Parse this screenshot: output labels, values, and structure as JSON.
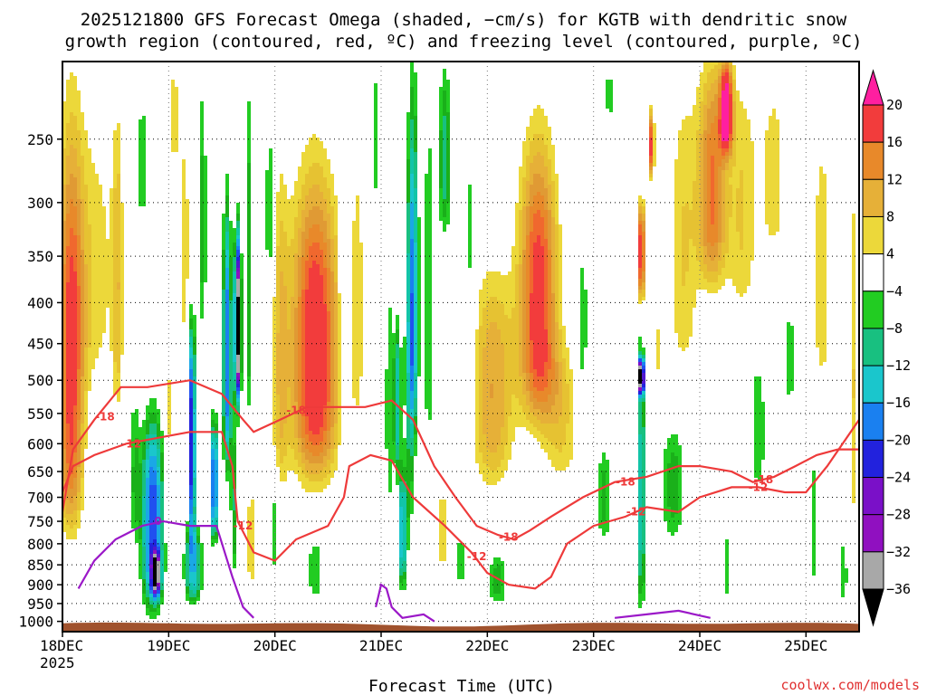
{
  "chart_data": {
    "type": "heatmap",
    "title_line1": "2025121800 GFS Forecast Omega (shaded, −cm/s) for KGTB with dendritic snow",
    "title_line2": "growth region (contoured, red, ºC) and freezing level (contoured, purple, ºC)",
    "xlabel": "Forecast Time (UTC)",
    "ylabel": "",
    "credit": "coolwx.com/models",
    "x_ticks": [
      {
        "label": "18DEC",
        "sub": "2025",
        "day": 0
      },
      {
        "label": "19DEC",
        "sub": "",
        "day": 1
      },
      {
        "label": "20DEC",
        "sub": "",
        "day": 2
      },
      {
        "label": "21DEC",
        "sub": "",
        "day": 3
      },
      {
        "label": "22DEC",
        "sub": "",
        "day": 4
      },
      {
        "label": "23DEC",
        "sub": "",
        "day": 5
      },
      {
        "label": "24DEC",
        "sub": "",
        "day": 6
      },
      {
        "label": "25DEC",
        "sub": "",
        "day": 7
      }
    ],
    "x_range_days": [
      0,
      7.5
    ],
    "y_ticks": [
      250,
      300,
      350,
      400,
      450,
      500,
      550,
      600,
      650,
      700,
      750,
      800,
      850,
      900,
      950,
      1000
    ],
    "y_range_hpa": [
      1030,
      200
    ],
    "colorbar": {
      "labels": [
        "20",
        "16",
        "12",
        "8",
        "4",
        "−4",
        "−8",
        "−12",
        "−16",
        "−20",
        "−24",
        "−28",
        "−32",
        "−36"
      ],
      "bins": [
        {
          "from": 20,
          "to": 24,
          "color": "#ff1fa0"
        },
        {
          "from": 16,
          "to": 20,
          "color": "#f23c3c"
        },
        {
          "from": 14,
          "to": 16,
          "color": "#f0682e"
        },
        {
          "from": 12,
          "to": 14,
          "color": "#e8892a"
        },
        {
          "from": 10,
          "to": 12,
          "color": "#e09a34"
        },
        {
          "from": 8,
          "to": 10,
          "color": "#e6b038"
        },
        {
          "from": 6,
          "to": 8,
          "color": "#e6c232"
        },
        {
          "from": 4,
          "to": 6,
          "color": "#ecd83a"
        },
        {
          "from": -4,
          "to": 4,
          "color": "#ffffff"
        },
        {
          "from": -6,
          "to": -4,
          "color": "#22cc22"
        },
        {
          "from": -8,
          "to": -6,
          "color": "#1ab01a"
        },
        {
          "from": -10,
          "to": -8,
          "color": "#18c080"
        },
        {
          "from": -12,
          "to": -10,
          "color": "#12c4a8"
        },
        {
          "from": -14,
          "to": -12,
          "color": "#1ac6cc"
        },
        {
          "from": -16,
          "to": -14,
          "color": "#1aa8e6"
        },
        {
          "from": -18,
          "to": -16,
          "color": "#1a80f0"
        },
        {
          "from": -20,
          "to": -18,
          "color": "#2050f0"
        },
        {
          "from": -22,
          "to": -20,
          "color": "#2222dd"
        },
        {
          "from": -24,
          "to": -22,
          "color": "#5018d0"
        },
        {
          "from": -26,
          "to": -24,
          "color": "#7a10c8"
        },
        {
          "from": -28,
          "to": -26,
          "color": "#9010c0"
        },
        {
          "from": -32,
          "to": -28,
          "color": "#a8a8a8"
        },
        {
          "from": -36,
          "to": -32,
          "color": "#000000"
        }
      ]
    },
    "omega_features": [
      {
        "day": 0.08,
        "p_top": 250,
        "p_bot": 760,
        "halfw": 0.12,
        "peak": 17
      },
      {
        "day": 0.3,
        "p_top": 220,
        "p_bot": 520,
        "halfw": 0.25,
        "peak": 5
      },
      {
        "day": 0.52,
        "p_top": 220,
        "p_bot": 560,
        "halfw": 0.05,
        "peak": 6
      },
      {
        "day": 0.68,
        "p_top": 500,
        "p_bot": 800,
        "halfw": 0.05,
        "peak": -6
      },
      {
        "day": 0.75,
        "p_top": 210,
        "p_bot": 330,
        "halfw": 0.04,
        "peak": -6
      },
      {
        "day": 0.85,
        "p_top": 560,
        "p_bot": 960,
        "halfw": 0.1,
        "peak": -20
      },
      {
        "day": 0.88,
        "p_top": 820,
        "p_bot": 930,
        "halfw": 0.04,
        "peak": -24
      },
      {
        "day": 1.0,
        "p_top": 400,
        "p_bot": 760,
        "halfw": 0.04,
        "peak": 5
      },
      {
        "day": 1.05,
        "p_top": 200,
        "p_bot": 270,
        "halfw": 0.04,
        "peak": 6
      },
      {
        "day": 1.08,
        "p_top": 280,
        "p_bot": 520,
        "halfw": 0.05,
        "peak": -5
      },
      {
        "day": 1.13,
        "p_top": 240,
        "p_bot": 460,
        "halfw": 0.07,
        "peak": 7
      },
      {
        "day": 1.22,
        "p_top": 420,
        "p_bot": 780,
        "halfw": 0.03,
        "peak": -24
      },
      {
        "day": 1.23,
        "p_top": 760,
        "p_bot": 950,
        "halfw": 0.08,
        "peak": -14
      },
      {
        "day": 1.32,
        "p_top": 200,
        "p_bot": 440,
        "halfw": 0.04,
        "peak": -7
      },
      {
        "day": 1.43,
        "p_top": 560,
        "p_bot": 790,
        "halfw": 0.03,
        "peak": -22
      },
      {
        "day": 1.55,
        "p_top": 300,
        "p_bot": 640,
        "halfw": 0.04,
        "peak": -18
      },
      {
        "day": 1.65,
        "p_top": 330,
        "p_bot": 530,
        "halfw": 0.03,
        "peak": -34
      },
      {
        "day": 1.62,
        "p_top": 560,
        "p_bot": 880,
        "halfw": 0.04,
        "peak": -8
      },
      {
        "day": 1.75,
        "p_top": 200,
        "p_bot": 560,
        "halfw": 0.03,
        "peak": -8
      },
      {
        "day": 1.78,
        "p_top": 640,
        "p_bot": 950,
        "halfw": 0.07,
        "peak": 5
      },
      {
        "day": 1.95,
        "p_top": 230,
        "p_bot": 400,
        "halfw": 0.04,
        "peak": -7
      },
      {
        "day": 2.0,
        "p_top": 650,
        "p_bot": 880,
        "halfw": 0.04,
        "peak": -6
      },
      {
        "day": 2.05,
        "p_top": 260,
        "p_bot": 700,
        "halfw": 0.08,
        "peak": 7
      },
      {
        "day": 2.38,
        "p_top": 280,
        "p_bot": 660,
        "halfw": 0.22,
        "peak": 20
      },
      {
        "day": 2.38,
        "p_top": 780,
        "p_bot": 950,
        "halfw": 0.08,
        "peak": -6
      },
      {
        "day": 2.65,
        "p_top": 220,
        "p_bot": 600,
        "halfw": 0.04,
        "peak": -7
      },
      {
        "day": 2.78,
        "p_top": 240,
        "p_bot": 580,
        "halfw": 0.07,
        "peak": 5
      },
      {
        "day": 2.95,
        "p_top": 200,
        "p_bot": 300,
        "halfw": 0.05,
        "peak": -6
      },
      {
        "day": 3.07,
        "p_top": 300,
        "p_bot": 800,
        "halfw": 0.03,
        "peak": -6
      },
      {
        "day": 3.15,
        "p_top": 420,
        "p_bot": 650,
        "halfw": 0.04,
        "peak": -12
      },
      {
        "day": 3.2,
        "p_top": 650,
        "p_bot": 910,
        "halfw": 0.04,
        "peak": -14
      },
      {
        "day": 3.27,
        "p_top": 300,
        "p_bot": 800,
        "halfw": 0.05,
        "peak": -7
      },
      {
        "day": 3.3,
        "p_top": 210,
        "p_bot": 580,
        "halfw": 0.05,
        "peak": -14
      },
      {
        "day": 3.45,
        "p_top": 200,
        "p_bot": 620,
        "halfw": 0.06,
        "peak": -6
      },
      {
        "day": 3.6,
        "p_top": 200,
        "p_bot": 330,
        "halfw": 0.06,
        "peak": -9
      },
      {
        "day": 3.58,
        "p_top": 640,
        "p_bot": 900,
        "halfw": 0.06,
        "peak": 5
      },
      {
        "day": 3.75,
        "p_top": 780,
        "p_bot": 910,
        "halfw": 0.05,
        "peak": -6
      },
      {
        "day": 3.85,
        "p_top": 220,
        "p_bot": 560,
        "halfw": 0.04,
        "peak": -6
      },
      {
        "day": 4.05,
        "p_top": 360,
        "p_bot": 680,
        "halfw": 0.2,
        "peak": 10
      },
      {
        "day": 4.1,
        "p_top": 820,
        "p_bot": 960,
        "halfw": 0.1,
        "peak": -7
      },
      {
        "day": 4.48,
        "p_top": 250,
        "p_bot": 560,
        "halfw": 0.18,
        "peak": 18
      },
      {
        "day": 4.7,
        "p_top": 450,
        "p_bot": 680,
        "halfw": 0.18,
        "peak": 6
      },
      {
        "day": 4.9,
        "p_top": 330,
        "p_bot": 550,
        "halfw": 0.05,
        "peak": -6
      },
      {
        "day": 5.1,
        "p_top": 600,
        "p_bot": 800,
        "halfw": 0.07,
        "peak": -7
      },
      {
        "day": 5.15,
        "p_top": 200,
        "p_bot": 240,
        "halfw": 0.05,
        "peak": -5
      },
      {
        "day": 5.45,
        "p_top": 300,
        "p_bot": 400,
        "halfw": 0.035,
        "peak": 20
      },
      {
        "day": 5.45,
        "p_top": 440,
        "p_bot": 960,
        "halfw": 0.04,
        "peak": -12
      },
      {
        "day": 5.45,
        "p_top": 470,
        "p_bot": 520,
        "halfw": 0.025,
        "peak": -36
      },
      {
        "day": 5.55,
        "p_top": 230,
        "p_bot": 280,
        "halfw": 0.02,
        "peak": 21
      },
      {
        "day": 5.6,
        "p_top": 420,
        "p_bot": 500,
        "halfw": 0.05,
        "peak": 5
      },
      {
        "day": 5.75,
        "p_top": 560,
        "p_bot": 800,
        "halfw": 0.12,
        "peak": -7
      },
      {
        "day": 5.85,
        "p_top": 200,
        "p_bot": 500,
        "halfw": 0.15,
        "peak": 6
      },
      {
        "day": 6.12,
        "p_top": 200,
        "p_bot": 380,
        "halfw": 0.13,
        "peak": 14
      },
      {
        "day": 6.25,
        "p_top": 200,
        "p_bot": 260,
        "halfw": 0.06,
        "peak": 20
      },
      {
        "day": 6.25,
        "p_top": 760,
        "p_bot": 950,
        "halfw": 0.03,
        "peak": -6
      },
      {
        "day": 6.4,
        "p_top": 200,
        "p_bot": 420,
        "halfw": 0.15,
        "peak": 6
      },
      {
        "day": 6.55,
        "p_top": 460,
        "p_bot": 700,
        "halfw": 0.08,
        "peak": -6
      },
      {
        "day": 6.7,
        "p_top": 200,
        "p_bot": 360,
        "halfw": 0.14,
        "peak": 5
      },
      {
        "day": 6.85,
        "p_top": 380,
        "p_bot": 560,
        "halfw": 0.06,
        "peak": -5
      },
      {
        "day": 7.15,
        "p_top": 200,
        "p_bot": 550,
        "halfw": 0.12,
        "peak": 5
      },
      {
        "day": 7.08,
        "p_top": 600,
        "p_bot": 920,
        "halfw": 0.04,
        "peak": -6
      },
      {
        "day": 7.45,
        "p_top": 240,
        "p_bot": 780,
        "halfw": 0.05,
        "peak": 6
      },
      {
        "day": 7.35,
        "p_top": 780,
        "p_bot": 960,
        "halfw": 0.05,
        "peak": -6
      }
    ],
    "contours_red": [
      {
        "label": "-18",
        "points": [
          [
            0,
            730
          ],
          [
            0.1,
            610
          ],
          [
            0.3,
            560
          ],
          [
            0.55,
            510
          ],
          [
            0.8,
            510
          ],
          [
            1.2,
            500
          ],
          [
            1.5,
            520
          ],
          [
            1.7,
            560
          ],
          [
            1.8,
            580
          ],
          [
            2.05,
            560
          ],
          [
            2.3,
            540
          ],
          [
            2.6,
            540
          ],
          [
            2.85,
            540
          ],
          [
            3.1,
            530
          ],
          [
            3.3,
            560
          ],
          [
            3.5,
            640
          ],
          [
            3.7,
            700
          ],
          [
            3.9,
            760
          ],
          [
            4.1,
            780
          ],
          [
            4.25,
            790
          ],
          [
            4.4,
            770
          ],
          [
            4.6,
            740
          ],
          [
            4.9,
            700
          ],
          [
            5.2,
            670
          ],
          [
            5.5,
            660
          ],
          [
            5.8,
            640
          ],
          [
            6.0,
            640
          ],
          [
            6.3,
            650
          ],
          [
            6.5,
            670
          ],
          [
            6.7,
            660
          ],
          [
            6.9,
            640
          ],
          [
            7.1,
            620
          ],
          [
            7.3,
            610
          ],
          [
            7.5,
            610
          ]
        ],
        "label_at": [
          [
            0.4,
            555
          ],
          [
            2.2,
            545
          ],
          [
            4.2,
            785
          ],
          [
            5.3,
            670
          ],
          [
            6.6,
            665
          ]
        ]
      },
      {
        "label": "-12",
        "points": [
          [
            0,
            690
          ],
          [
            0.1,
            640
          ],
          [
            0.3,
            620
          ],
          [
            0.6,
            600
          ],
          [
            0.9,
            590
          ],
          [
            1.2,
            580
          ],
          [
            1.5,
            580
          ],
          [
            1.6,
            640
          ],
          [
            1.65,
            750
          ],
          [
            1.8,
            820
          ],
          [
            2.0,
            840
          ],
          [
            2.2,
            790
          ],
          [
            2.5,
            760
          ],
          [
            2.65,
            700
          ],
          [
            2.7,
            640
          ],
          [
            2.9,
            620
          ],
          [
            3.1,
            630
          ],
          [
            3.3,
            700
          ],
          [
            3.6,
            760
          ],
          [
            3.85,
            820
          ],
          [
            4.0,
            870
          ],
          [
            4.2,
            900
          ],
          [
            4.45,
            910
          ],
          [
            4.6,
            880
          ],
          [
            4.75,
            800
          ],
          [
            5.0,
            760
          ],
          [
            5.3,
            740
          ],
          [
            5.5,
            720
          ],
          [
            5.8,
            730
          ],
          [
            6.0,
            700
          ],
          [
            6.3,
            680
          ],
          [
            6.55,
            680
          ],
          [
            6.8,
            690
          ],
          [
            7.0,
            690
          ],
          [
            7.2,
            640
          ],
          [
            7.5,
            560
          ]
        ],
        "label_at": [
          [
            0.65,
            600
          ],
          [
            1.7,
            760
          ],
          [
            3.9,
            830
          ],
          [
            5.4,
            730
          ],
          [
            6.55,
            680
          ]
        ]
      }
    ],
    "contours_purple": [
      {
        "label": "0",
        "points": [
          [
            0.15,
            910
          ],
          [
            0.3,
            840
          ],
          [
            0.5,
            790
          ],
          [
            0.75,
            760
          ],
          [
            0.95,
            750
          ],
          [
            1.2,
            760
          ],
          [
            1.45,
            760
          ],
          [
            1.6,
            880
          ],
          [
            1.7,
            960
          ],
          [
            1.8,
            990
          ]
        ],
        "label_at": [
          [
            0.9,
            750
          ]
        ]
      },
      {
        "label": "0",
        "points": [
          [
            2.95,
            960
          ],
          [
            3.0,
            900
          ],
          [
            3.05,
            910
          ],
          [
            3.1,
            960
          ],
          [
            3.2,
            990
          ],
          [
            3.4,
            980
          ],
          [
            3.5,
            1000
          ]
        ],
        "label_at": []
      },
      {
        "label": "0",
        "points": [
          [
            5.2,
            990
          ],
          [
            5.5,
            980
          ],
          [
            5.8,
            970
          ],
          [
            6.1,
            990
          ]
        ],
        "label_at": []
      }
    ],
    "terrain_color": "#a0522d"
  }
}
